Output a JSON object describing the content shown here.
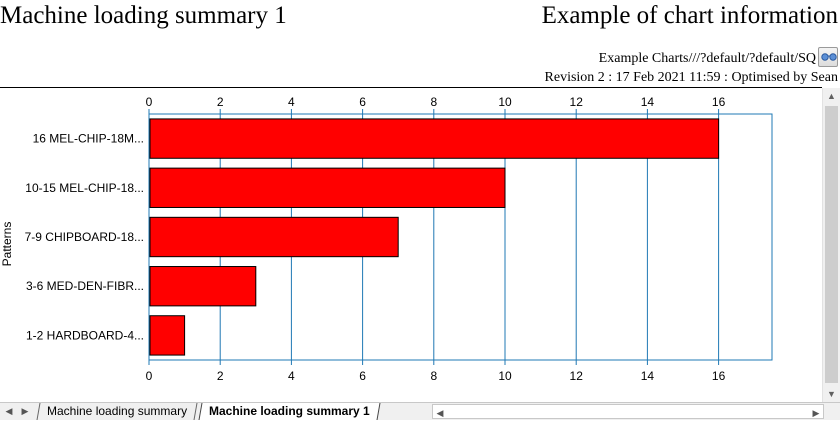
{
  "header": {
    "title_left": "Machine loading summary 1",
    "title_right": "Example of chart information",
    "path": "Example Charts///?default/?default/SQ",
    "revision": "Revision 2 : 17 Feb 2021 11:59 : Optimised by Sean",
    "glasses_icon": "glasses-icon"
  },
  "tabs": [
    {
      "label": "Machine loading summary",
      "active": false
    },
    {
      "label": "Machine loading summary 1",
      "active": true
    }
  ],
  "colors": {
    "bar": "#ff0000",
    "axis": "#1f78b4"
  },
  "chart_data": {
    "type": "bar",
    "orientation": "horizontal",
    "ylabel": "Patterns",
    "categories": [
      "16 MEL-CHIP-18M...",
      "10-15 MEL-CHIP-18...",
      "7-9 CHIPBOARD-18...",
      "3-6 MED-DEN-FIBR...",
      "1-2 HARDBOARD-4..."
    ],
    "values": [
      16,
      10,
      7,
      3,
      1
    ],
    "xlim": [
      0,
      17.5
    ],
    "ticks": [
      0,
      2,
      4,
      6,
      8,
      10,
      12,
      14,
      16
    ],
    "grid": true
  }
}
